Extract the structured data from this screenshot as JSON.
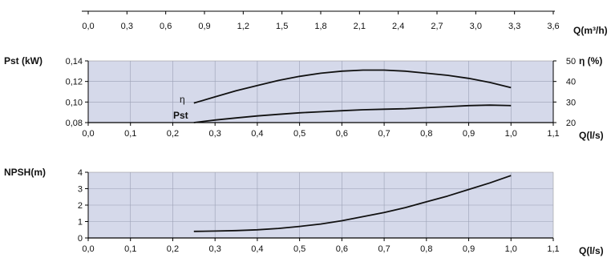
{
  "colors": {
    "plot_background": "#d5d9ea",
    "grid": "#9aa0b4",
    "curve": "#111111",
    "axis": "#000000"
  },
  "chart_data": [
    {
      "type": "line",
      "title": "",
      "x_axis_bottom": {
        "label": "Q(l/s)",
        "range": [
          0.0,
          1.1
        ],
        "ticks": [
          "0,0",
          "0,1",
          "0,2",
          "0,3",
          "0,4",
          "0,5",
          "0,6",
          "0,7",
          "0,8",
          "0,9",
          "1,0",
          "1,1"
        ]
      },
      "x_axis_top": {
        "label": "Q(m³/h)",
        "range": [
          0.0,
          3.6
        ],
        "ticks": [
          "0,0",
          "0,3",
          "0,6",
          "0,9",
          "1,2",
          "1,5",
          "1,8",
          "2,1",
          "2,4",
          "2,7",
          "3,0",
          "3,3",
          "3,6"
        ]
      },
      "y_axis_left": {
        "label": "Pst (kW)",
        "range": [
          0.08,
          0.14
        ],
        "ticks": [
          "0,08",
          "0,10",
          "0,12",
          "0,14"
        ]
      },
      "y_axis_right": {
        "label": "η (%)",
        "range": [
          20,
          50
        ],
        "ticks": [
          "20",
          "30",
          "40",
          "50"
        ]
      },
      "grid": true,
      "series": [
        {
          "name": "η",
          "axis": "right",
          "x": [
            0.25,
            0.3,
            0.35,
            0.4,
            0.45,
            0.5,
            0.55,
            0.6,
            0.65,
            0.7,
            0.75,
            0.8,
            0.85,
            0.9,
            0.95,
            1.0
          ],
          "y": [
            29.5,
            32.5,
            35.5,
            38,
            40.5,
            42.5,
            44,
            45,
            45.5,
            45.5,
            45,
            44,
            43,
            41.5,
            39.5,
            37
          ]
        },
        {
          "name": "Pst",
          "axis": "left",
          "x": [
            0.25,
            0.3,
            0.35,
            0.4,
            0.45,
            0.5,
            0.55,
            0.6,
            0.65,
            0.7,
            0.75,
            0.8,
            0.85,
            0.9,
            0.95,
            1.0
          ],
          "y": [
            0.08,
            0.0825,
            0.0845,
            0.0865,
            0.088,
            0.0895,
            0.0905,
            0.0915,
            0.0925,
            0.093,
            0.0935,
            0.0945,
            0.0955,
            0.0965,
            0.097,
            0.0965
          ]
        }
      ]
    },
    {
      "type": "line",
      "title": "",
      "x_axis_bottom": {
        "label": "Q(l/s)",
        "range": [
          0.0,
          1.1
        ],
        "ticks": [
          "0,0",
          "0,1",
          "0,2",
          "0,3",
          "0,4",
          "0,5",
          "0,6",
          "0,7",
          "0,8",
          "0,9",
          "1,0",
          "1,1"
        ]
      },
      "y_axis_left": {
        "label": "NPSH(m)",
        "range": [
          0,
          4
        ],
        "ticks": [
          "0",
          "1",
          "2",
          "3",
          "4"
        ]
      },
      "grid": true,
      "series": [
        {
          "name": "",
          "x": [
            0.25,
            0.3,
            0.35,
            0.4,
            0.45,
            0.5,
            0.55,
            0.6,
            0.65,
            0.7,
            0.75,
            0.8,
            0.85,
            0.9,
            0.95,
            1.0
          ],
          "y": [
            0.4,
            0.42,
            0.45,
            0.5,
            0.58,
            0.7,
            0.85,
            1.05,
            1.3,
            1.55,
            1.85,
            2.2,
            2.55,
            2.95,
            3.35,
            3.8
          ]
        }
      ]
    }
  ]
}
